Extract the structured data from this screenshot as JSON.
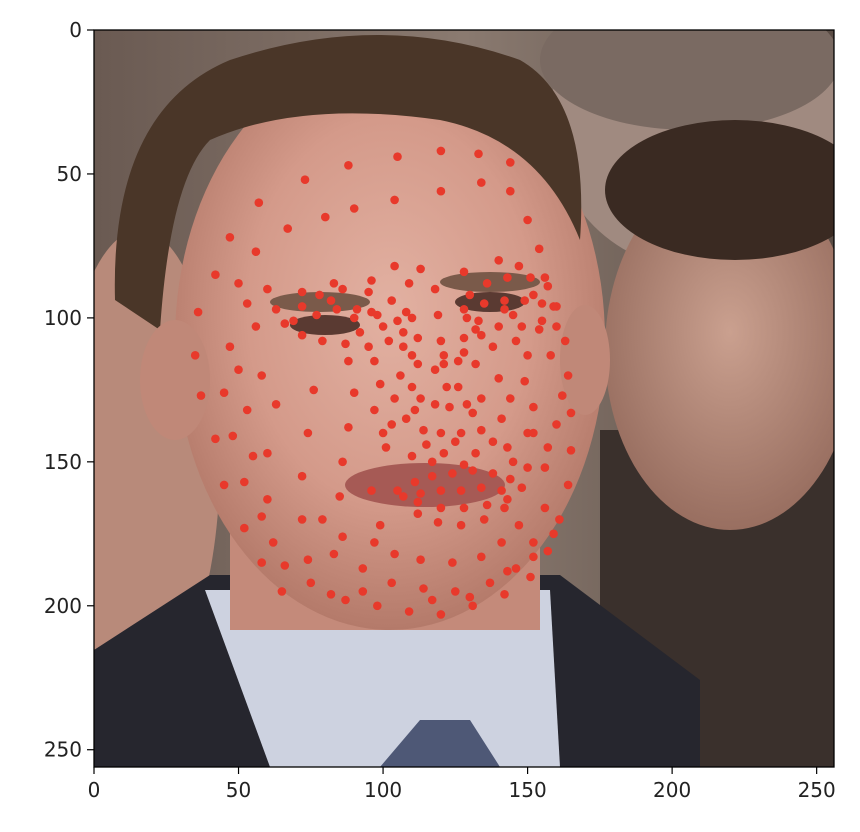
{
  "chart_data": {
    "type": "scatter",
    "title": "",
    "xlabel": "",
    "ylabel": "",
    "xlim": [
      0,
      256
    ],
    "ylim": [
      256,
      0
    ],
    "y_inverted": true,
    "grid": false,
    "background": "photo-face",
    "marker_color": "#e8392b",
    "x_ticks": [
      {
        "value": 0,
        "label": "0"
      },
      {
        "value": 50,
        "label": "50"
      },
      {
        "value": 100,
        "label": "100"
      },
      {
        "value": 150,
        "label": "150"
      },
      {
        "value": 200,
        "label": "200"
      },
      {
        "value": 250,
        "label": "250"
      }
    ],
    "y_ticks": [
      {
        "value": 0,
        "label": "0"
      },
      {
        "value": 50,
        "label": "50"
      },
      {
        "value": 100,
        "label": "100"
      },
      {
        "value": 150,
        "label": "150"
      },
      {
        "value": 200,
        "label": "200"
      },
      {
        "value": 250,
        "label": "250"
      }
    ],
    "series": [
      {
        "points": [
          [
            88,
            47
          ],
          [
            105,
            44
          ],
          [
            120,
            42
          ],
          [
            133,
            43
          ],
          [
            144,
            46
          ],
          [
            73,
            52
          ],
          [
            57,
            60
          ],
          [
            47,
            72
          ],
          [
            50,
            88
          ],
          [
            42,
            85
          ],
          [
            36,
            98
          ],
          [
            35,
            113
          ],
          [
            37,
            127
          ],
          [
            42,
            142
          ],
          [
            45,
            158
          ],
          [
            52,
            173
          ],
          [
            58,
            185
          ],
          [
            65,
            195
          ],
          [
            75,
            192
          ],
          [
            87,
            198
          ],
          [
            98,
            200
          ],
          [
            109,
            202
          ],
          [
            120,
            203
          ],
          [
            131,
            200
          ],
          [
            142,
            196
          ],
          [
            151,
            190
          ],
          [
            157,
            181
          ],
          [
            161,
            170
          ],
          [
            164,
            158
          ],
          [
            165,
            146
          ],
          [
            165,
            133
          ],
          [
            164,
            120
          ],
          [
            163,
            108
          ],
          [
            160,
            96
          ],
          [
            156,
            86
          ],
          [
            154,
            76
          ],
          [
            150,
            66
          ],
          [
            144,
            56
          ],
          [
            134,
            53
          ],
          [
            120,
            56
          ],
          [
            104,
            59
          ],
          [
            90,
            62
          ],
          [
            80,
            65
          ],
          [
            67,
            69
          ],
          [
            56,
            77
          ],
          [
            56,
            103
          ],
          [
            58,
            120
          ],
          [
            66,
            102
          ],
          [
            72,
            96
          ],
          [
            78,
            92
          ],
          [
            86,
            90
          ],
          [
            95,
            91
          ],
          [
            103,
            94
          ],
          [
            108,
            98
          ],
          [
            107,
            105
          ],
          [
            102,
            108
          ],
          [
            95,
            110
          ],
          [
            87,
            109
          ],
          [
            79,
            108
          ],
          [
            72,
            106
          ],
          [
            69,
            101
          ],
          [
            77,
            99
          ],
          [
            84,
            97
          ],
          [
            91,
            97
          ],
          [
            98,
            99
          ],
          [
            105,
            101
          ],
          [
            130,
            92
          ],
          [
            136,
            88
          ],
          [
            143,
            86
          ],
          [
            151,
            86
          ],
          [
            157,
            89
          ],
          [
            159,
            96
          ],
          [
            155,
            101
          ],
          [
            148,
            103
          ],
          [
            140,
            103
          ],
          [
            133,
            101
          ],
          [
            128,
            97
          ],
          [
            135,
            95
          ],
          [
            142,
            94
          ],
          [
            149,
            94
          ],
          [
            155,
            95
          ],
          [
            104,
            82
          ],
          [
            113,
            83
          ],
          [
            118,
            90
          ],
          [
            119,
            99
          ],
          [
            120,
            108
          ],
          [
            121,
            116
          ],
          [
            122,
            124
          ],
          [
            113,
            128
          ],
          [
            118,
            130
          ],
          [
            123,
            131
          ],
          [
            129,
            130
          ],
          [
            134,
            128
          ],
          [
            110,
            124
          ],
          [
            104,
            128
          ],
          [
            108,
            135
          ],
          [
            114,
            139
          ],
          [
            120,
            140
          ],
          [
            127,
            140
          ],
          [
            134,
            139
          ],
          [
            141,
            135
          ],
          [
            144,
            128
          ],
          [
            140,
            121
          ],
          [
            132,
            116
          ],
          [
            126,
            115
          ],
          [
            112,
            116
          ],
          [
            106,
            120
          ],
          [
            99,
            123
          ],
          [
            97,
            132
          ],
          [
            100,
            140
          ],
          [
            110,
            148
          ],
          [
            121,
            147
          ],
          [
            132,
            147
          ],
          [
            143,
            145
          ],
          [
            150,
            140
          ],
          [
            152,
            131
          ],
          [
            149,
            122
          ],
          [
            105,
            160
          ],
          [
            111,
            157
          ],
          [
            117,
            155
          ],
          [
            124,
            154
          ],
          [
            131,
            153
          ],
          [
            138,
            154
          ],
          [
            144,
            156
          ],
          [
            148,
            159
          ],
          [
            143,
            163
          ],
          [
            136,
            165
          ],
          [
            128,
            166
          ],
          [
            120,
            166
          ],
          [
            112,
            164
          ],
          [
            107,
            162
          ],
          [
            113,
            161
          ],
          [
            120,
            160
          ],
          [
            127,
            160
          ],
          [
            134,
            159
          ],
          [
            141,
            160
          ],
          [
            112,
            168
          ],
          [
            119,
            171
          ],
          [
            127,
            172
          ],
          [
            135,
            170
          ],
          [
            142,
            166
          ],
          [
            88,
            115
          ],
          [
            90,
            126
          ],
          [
            88,
            138
          ],
          [
            86,
            150
          ],
          [
            85,
            162
          ],
          [
            86,
            176
          ],
          [
            93,
            187
          ],
          [
            103,
            192
          ],
          [
            114,
            194
          ],
          [
            125,
            195
          ],
          [
            137,
            192
          ],
          [
            146,
            187
          ],
          [
            152,
            178
          ],
          [
            156,
            166
          ],
          [
            156,
            152
          ],
          [
            152,
            140
          ],
          [
            76,
            125
          ],
          [
            74,
            140
          ],
          [
            72,
            155
          ],
          [
            72,
            170
          ],
          [
            74,
            184
          ],
          [
            63,
            130
          ],
          [
            60,
            147
          ],
          [
            60,
            163
          ],
          [
            62,
            178
          ],
          [
            47,
            110
          ],
          [
            45,
            126
          ],
          [
            48,
            141
          ],
          [
            52,
            157
          ],
          [
            96,
            160
          ],
          [
            99,
            172
          ],
          [
            104,
            182
          ],
          [
            113,
            184
          ],
          [
            124,
            185
          ],
          [
            134,
            183
          ],
          [
            141,
            178
          ],
          [
            147,
            172
          ],
          [
            79,
            170
          ],
          [
            83,
            182
          ],
          [
            97,
            178
          ],
          [
            60,
            90
          ],
          [
            82,
            94
          ],
          [
            96,
            98
          ],
          [
            142,
            97
          ],
          [
            154,
            104
          ],
          [
            111,
            132
          ],
          [
            131,
            133
          ],
          [
            112,
            107
          ],
          [
            128,
            107
          ],
          [
            90,
            100
          ],
          [
            100,
            103
          ],
          [
            145,
            99
          ],
          [
            126,
            124
          ],
          [
            118,
            118
          ],
          [
            97,
            115
          ],
          [
            92,
            105
          ],
          [
            150,
            113
          ],
          [
            146,
            108
          ],
          [
            138,
            110
          ],
          [
            134,
            106
          ],
          [
            107,
            110
          ],
          [
            110,
            100
          ],
          [
            129,
            100
          ],
          [
            132,
            104
          ],
          [
            110,
            113
          ],
          [
            128,
            112
          ],
          [
            117,
            150
          ],
          [
            128,
            151
          ],
          [
            121,
            113
          ],
          [
            103,
            137
          ],
          [
            138,
            143
          ],
          [
            125,
            143
          ],
          [
            115,
            144
          ],
          [
            101,
            145
          ],
          [
            145,
            150
          ],
          [
            150,
            152
          ],
          [
            157,
            145
          ],
          [
            160,
            137
          ],
          [
            162,
            127
          ],
          [
            158,
            113
          ],
          [
            160,
            103
          ],
          [
            152,
            92
          ],
          [
            147,
            82
          ],
          [
            140,
            80
          ],
          [
            128,
            84
          ],
          [
            109,
            88
          ],
          [
            96,
            87
          ],
          [
            83,
            88
          ],
          [
            72,
            91
          ],
          [
            63,
            97
          ],
          [
            53,
            95
          ],
          [
            50,
            118
          ],
          [
            53,
            132
          ],
          [
            55,
            148
          ],
          [
            58,
            169
          ],
          [
            66,
            186
          ],
          [
            82,
            196
          ],
          [
            93,
            195
          ],
          [
            117,
            198
          ],
          [
            130,
            197
          ],
          [
            143,
            188
          ],
          [
            152,
            183
          ],
          [
            159,
            175
          ]
        ]
      }
    ]
  }
}
